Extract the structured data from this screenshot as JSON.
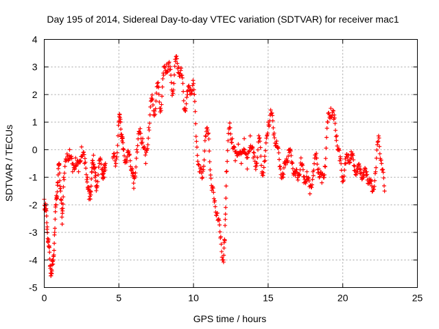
{
  "chart_data": {
    "type": "scatter",
    "title": "Day 195 of 2014, Sidereal Day-to-day VTEC variation (SDTVAR) for receiver mac1",
    "xlabel": "GPS time / hours",
    "ylabel": "SDTVAR / TECUs",
    "xlim": [
      0,
      25
    ],
    "ylim": [
      -5,
      4
    ],
    "xticks": [
      "0",
      "5",
      "10",
      "15",
      "20",
      "25"
    ],
    "yticks": [
      "-5",
      "-4",
      "-3",
      "-2",
      "-1",
      "0",
      "1",
      "2",
      "3",
      "4"
    ],
    "grid": true,
    "marker": "plus",
    "color": "#ff0000",
    "series": [
      {
        "name": "mac1",
        "description": "trace outline",
        "x": [
          0.0,
          0.1,
          0.2,
          0.3,
          0.4,
          0.5,
          0.6,
          0.7,
          0.8,
          0.9,
          1.0,
          1.1,
          1.2,
          1.3,
          1.5,
          1.7,
          1.9,
          2.1,
          2.3,
          2.5,
          2.7,
          2.9,
          3.0,
          3.1,
          3.2,
          3.3,
          3.4,
          3.5,
          3.7,
          3.9,
          4.0,
          4.1,
          4.6,
          4.8,
          5.0,
          5.1,
          5.2,
          5.3,
          5.5,
          5.7,
          5.9,
          6.0,
          6.2,
          6.4,
          6.6,
          6.8,
          7.0,
          7.2,
          7.4,
          7.6,
          7.8,
          8.0,
          8.2,
          8.4,
          8.6,
          8.8,
          9.0,
          9.2,
          9.4,
          9.6,
          9.8,
          10.0,
          10.2,
          10.4,
          10.6,
          10.8,
          11.0,
          11.2,
          11.4,
          11.6,
          11.8,
          12.0,
          12.1,
          12.2,
          12.4,
          12.6,
          12.8,
          13.0,
          13.2,
          13.4,
          13.6,
          13.8,
          14.0,
          14.2,
          14.4,
          14.6,
          14.8,
          15.0,
          15.2,
          15.4,
          15.6,
          15.8,
          16.0,
          16.2,
          16.4,
          16.6,
          16.8,
          17.0,
          17.2,
          17.4,
          17.6,
          17.8,
          18.0,
          18.2,
          18.4,
          18.6,
          18.8,
          19.0,
          19.2,
          19.4,
          19.6,
          19.8,
          20.0,
          20.2,
          20.4,
          20.6,
          20.8,
          21.0,
          21.2,
          21.4,
          21.6,
          21.8,
          22.0,
          22.2,
          22.4,
          22.6,
          22.8
        ],
        "y": [
          -1.8,
          -2.2,
          -2.8,
          -3.5,
          -4.2,
          -4.5,
          -4.0,
          -3.0,
          -1.8,
          -1.2,
          -0.5,
          -1.5,
          -2.7,
          -1.0,
          -0.4,
          0.0,
          -0.8,
          -0.3,
          -0.8,
          0.1,
          -0.5,
          -1.0,
          -1.8,
          -1.5,
          -0.8,
          -0.2,
          -1.0,
          -1.3,
          -0.5,
          -0.7,
          -1.0,
          -0.5,
          -0.3,
          -0.5,
          1.0,
          1.1,
          0.4,
          0.0,
          -0.4,
          -0.2,
          -0.7,
          -1.4,
          0.0,
          0.6,
          0.4,
          -0.5,
          0.8,
          1.8,
          1.4,
          2.3,
          1.5,
          2.7,
          3.1,
          2.9,
          2.1,
          3.2,
          3.0,
          2.7,
          1.5,
          2.0,
          2.2,
          2.4,
          0.3,
          -0.8,
          -1.0,
          0.5,
          0.6,
          -1.3,
          -1.9,
          -2.3,
          -3.2,
          -4.0,
          -3.3,
          -0.8,
          0.8,
          0.4,
          -0.4,
          0.2,
          -0.5,
          0.4,
          -0.7,
          0.5,
          -0.3,
          -0.5,
          0.4,
          -0.8,
          -0.4,
          1.0,
          1.3,
          0.6,
          0.1,
          -0.6,
          -1.0,
          -0.4,
          0.0,
          -0.5,
          -0.8,
          -1.1,
          -0.3,
          -1.2,
          -0.8,
          -1.6,
          -0.8,
          -0.3,
          -0.7,
          -1.2,
          -0.6,
          1.0,
          1.5,
          1.1,
          0.5,
          -0.4,
          -1.0,
          -0.5,
          -0.2,
          -0.3,
          -0.6,
          -0.8,
          -0.7,
          -1.0,
          -0.8,
          -1.2,
          -1.5,
          -0.8,
          0.5,
          -0.5,
          -1.5
        ]
      }
    ]
  }
}
